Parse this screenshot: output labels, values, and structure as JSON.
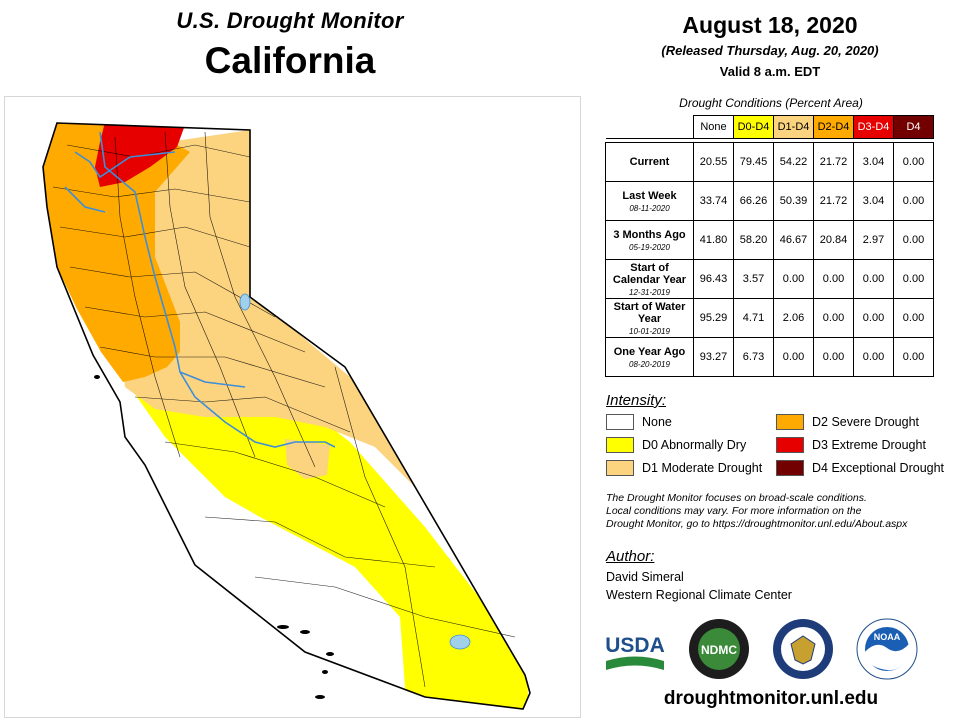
{
  "header": {
    "subtitle": "U.S. Drought Monitor",
    "title": "California",
    "date": "August 18, 2020",
    "released": "(Released Thursday, Aug. 20, 2020)",
    "valid": "Valid 8 a.m. EDT"
  },
  "table": {
    "caption": "Drought Conditions (Percent Area)",
    "columns": [
      "None",
      "D0-D4",
      "D1-D4",
      "D2-D4",
      "D3-D4",
      "D4"
    ],
    "rows": [
      {
        "label": "Current",
        "date": "",
        "values": [
          "20.55",
          "79.45",
          "54.22",
          "21.72",
          "3.04",
          "0.00"
        ]
      },
      {
        "label": "Last Week",
        "date": "08-11-2020",
        "values": [
          "33.74",
          "66.26",
          "50.39",
          "21.72",
          "3.04",
          "0.00"
        ]
      },
      {
        "label": "3 Months Ago",
        "date": "05-19-2020",
        "values": [
          "41.80",
          "58.20",
          "46.67",
          "20.84",
          "2.97",
          "0.00"
        ]
      },
      {
        "label": "Start of Calendar Year",
        "date": "12-31-2019",
        "values": [
          "96.43",
          "3.57",
          "0.00",
          "0.00",
          "0.00",
          "0.00"
        ]
      },
      {
        "label": "Start of Water Year",
        "date": "10-01-2019",
        "values": [
          "95.29",
          "4.71",
          "2.06",
          "0.00",
          "0.00",
          "0.00"
        ]
      },
      {
        "label": "One Year Ago",
        "date": "08-20-2019",
        "values": [
          "93.27",
          "6.73",
          "0.00",
          "0.00",
          "0.00",
          "0.00"
        ]
      }
    ]
  },
  "legend": {
    "title": "Intensity:",
    "items": [
      {
        "label": "None",
        "color": "#ffffff"
      },
      {
        "label": "D0 Abnormally Dry",
        "color": "#ffff00"
      },
      {
        "label": "D1 Moderate Drought",
        "color": "#fcd37f"
      },
      {
        "label": "D2 Severe Drought",
        "color": "#ffaa00"
      },
      {
        "label": "D3 Extreme Drought",
        "color": "#e60000"
      },
      {
        "label": "D4 Exceptional Drought",
        "color": "#730000"
      }
    ]
  },
  "note": {
    "line1": "The Drought Monitor focuses on broad-scale conditions.",
    "line2": "Local conditions may vary. For more information on the",
    "line3": "Drought Monitor, go to https://droughtmonitor.unl.edu/About.aspx"
  },
  "author": {
    "title": "Author:",
    "name": "David Simeral",
    "org": "Western Regional Climate Center"
  },
  "logos": {
    "usda": "USDA",
    "ndmc": "NDMC",
    "noaa": "NOAA"
  },
  "url": "droughtmonitor.unl.edu"
}
